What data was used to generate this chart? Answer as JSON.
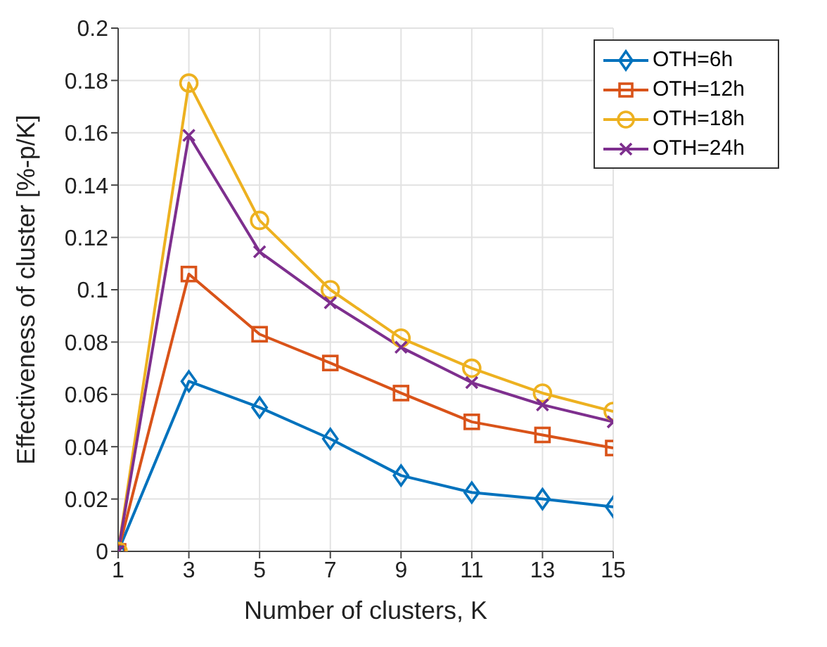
{
  "chart_data": {
    "type": "line",
    "xlabel": "Number of clusters, K",
    "ylabel": "Effectiveness of cluster [%-p/K]",
    "x": [
      1,
      3,
      5,
      7,
      9,
      11,
      13,
      15
    ],
    "xlim": [
      1,
      15
    ],
    "xticks": [
      1,
      3,
      5,
      7,
      9,
      11,
      13,
      15
    ],
    "ylim": [
      0,
      0.2
    ],
    "yticks": [
      0,
      0.02,
      0.04,
      0.06,
      0.08,
      0.1,
      0.12,
      0.14,
      0.16,
      0.18,
      0.2
    ],
    "grid": true,
    "legend": "top right",
    "line_style": "solid",
    "series": [
      {
        "name": "OTH=6h",
        "color": "#0072bd",
        "marker": "diamond",
        "values": [
          0,
          0.065,
          0.055,
          0.043,
          0.029,
          0.0225,
          0.02,
          0.017
        ]
      },
      {
        "name": "OTH=12h",
        "color": "#d95319",
        "marker": "square",
        "values": [
          0,
          0.106,
          0.083,
          0.072,
          0.0605,
          0.0495,
          0.0445,
          0.0395
        ]
      },
      {
        "name": "OTH=18h",
        "color": "#edb120",
        "marker": "circle",
        "values": [
          0,
          0.179,
          0.1265,
          0.1,
          0.0815,
          0.07,
          0.0605,
          0.0535
        ]
      },
      {
        "name": "OTH=24h",
        "color": "#7e2f8e",
        "marker": "cross",
        "values": [
          0,
          0.159,
          0.1145,
          0.095,
          0.078,
          0.0645,
          0.056,
          0.0495
        ]
      }
    ]
  }
}
